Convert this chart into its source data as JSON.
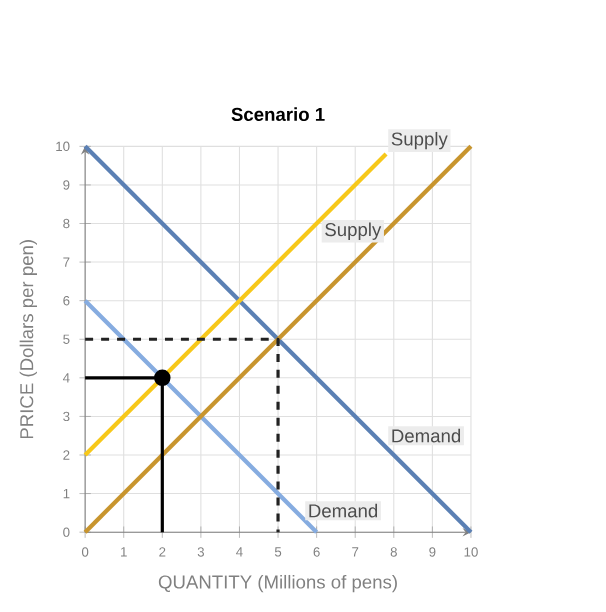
{
  "chart_data": {
    "type": "line",
    "title": "Scenario 1",
    "xlabel": "QUANTITY (Millions of pens)",
    "ylabel": "PRICE (Dollars per pen)",
    "xlim": [
      0,
      10
    ],
    "ylim": [
      0,
      10
    ],
    "xticks": [
      0,
      1,
      2,
      3,
      4,
      5,
      6,
      7,
      8,
      9,
      10
    ],
    "yticks": [
      0,
      1,
      2,
      3,
      4,
      5,
      6,
      7,
      8,
      9,
      10
    ],
    "grid": true,
    "series": [
      {
        "name": "Demand",
        "color": "#5b80b4",
        "x": [
          0,
          10
        ],
        "values": [
          10,
          0
        ]
      },
      {
        "name": "Demand",
        "color": "#86ace0",
        "x": [
          0,
          6
        ],
        "values": [
          6,
          0
        ]
      },
      {
        "name": "Supply",
        "color": "#c8952e",
        "x": [
          0,
          10
        ],
        "values": [
          0,
          10
        ]
      },
      {
        "name": "Supply",
        "color": "#f7c81a",
        "x": [
          0,
          7.8
        ],
        "values": [
          2,
          9.8
        ]
      },
      {
        "color": "#222222",
        "line_style": "dashed",
        "x": [
          0,
          5,
          5
        ],
        "values": [
          5,
          5,
          0
        ]
      },
      {
        "color": "#000000",
        "line_style": "solid",
        "x": [
          0,
          2,
          2
        ],
        "values": [
          4,
          4,
          0
        ]
      },
      {
        "type": "scatter",
        "color": "#000000",
        "marker": "circle",
        "x": [
          2
        ],
        "values": [
          4
        ]
      }
    ]
  }
}
